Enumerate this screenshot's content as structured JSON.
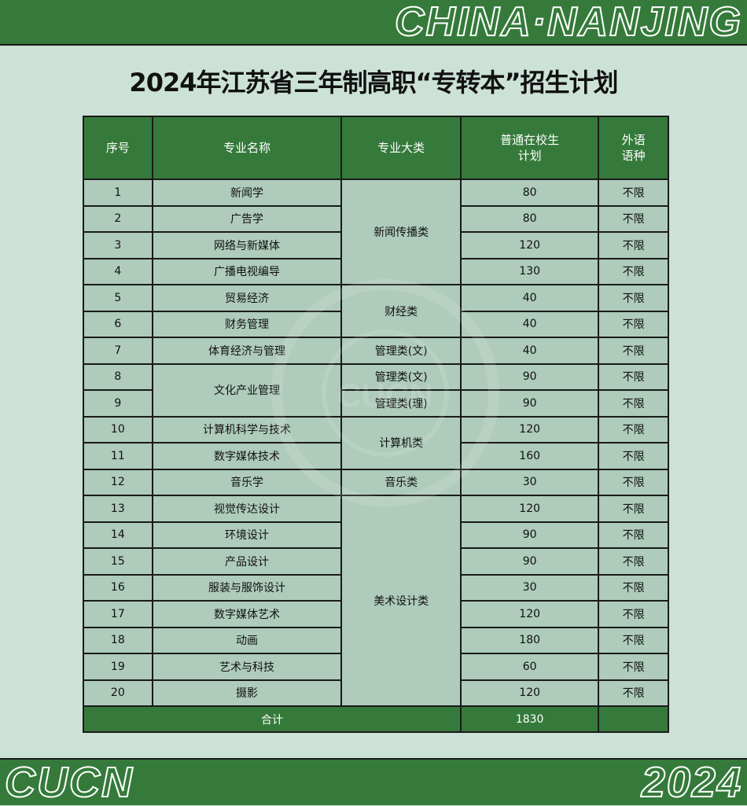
{
  "banner_top": {
    "text": "CHINA·NANJING"
  },
  "banner_bottom": {
    "left": "CUCN",
    "right": "2024"
  },
  "title": "2024年江苏省三年制高职“专转本”招生计划",
  "colors": {
    "green": "#357a3a",
    "cell": "#aecbbb",
    "background": "#cde2d7"
  },
  "watermark": {
    "text": "CUCN",
    "ring_text": "COMMUNICATION UNIVERSITY OF CHINA NANJING"
  },
  "table": {
    "headers": [
      "序号",
      "专业名称",
      "专业大类",
      "普通在校生\n计划",
      "外语\n语种"
    ],
    "rows": [
      {
        "no": "1",
        "name": "新闻学",
        "plan": "80",
        "lang": "不限"
      },
      {
        "no": "2",
        "name": "广告学",
        "plan": "80",
        "lang": "不限"
      },
      {
        "no": "3",
        "name": "网络与新媒体",
        "plan": "120",
        "lang": "不限"
      },
      {
        "no": "4",
        "name": "广播电视编导",
        "plan": "130",
        "lang": "不限"
      },
      {
        "no": "5",
        "name": "贸易经济",
        "plan": "40",
        "lang": "不限"
      },
      {
        "no": "6",
        "name": "财务管理",
        "plan": "40",
        "lang": "不限"
      },
      {
        "no": "7",
        "name": "体育经济与管理",
        "plan": "40",
        "lang": "不限"
      },
      {
        "no": "8",
        "name": "文化产业管理",
        "name_span": 2,
        "plan": "90",
        "lang": "不限"
      },
      {
        "no": "9",
        "plan": "90",
        "lang": "不限"
      },
      {
        "no": "10",
        "name": "计算机科学与技术",
        "plan": "120",
        "lang": "不限"
      },
      {
        "no": "11",
        "name": "数字媒体技术",
        "plan": "160",
        "lang": "不限"
      },
      {
        "no": "12",
        "name": "音乐学",
        "plan": "30",
        "lang": "不限"
      },
      {
        "no": "13",
        "name": "视觉传达设计",
        "plan": "120",
        "lang": "不限"
      },
      {
        "no": "14",
        "name": "环境设计",
        "plan": "90",
        "lang": "不限"
      },
      {
        "no": "15",
        "name": "产品设计",
        "plan": "90",
        "lang": "不限"
      },
      {
        "no": "16",
        "name": "服装与服饰设计",
        "plan": "30",
        "lang": "不限"
      },
      {
        "no": "17",
        "name": "数字媒体艺术",
        "plan": "120",
        "lang": "不限"
      },
      {
        "no": "18",
        "name": "动画",
        "plan": "180",
        "lang": "不限"
      },
      {
        "no": "19",
        "name": "艺术与科技",
        "plan": "60",
        "lang": "不限"
      },
      {
        "no": "20",
        "name": "摄影",
        "plan": "120",
        "lang": "不限"
      }
    ],
    "categories": [
      {
        "label": "新闻传播类",
        "span": 4
      },
      {
        "label": "财经类",
        "span": 2
      },
      {
        "label": "管理类(文)",
        "span": 1
      },
      {
        "label": "管理类(文)",
        "span": 1
      },
      {
        "label": "管理类(理)",
        "span": 1
      },
      {
        "label": "计算机类",
        "span": 2
      },
      {
        "label": "音乐类",
        "span": 1
      },
      {
        "label": "美术设计类",
        "span": 8
      }
    ],
    "total": {
      "label": "合计",
      "plan": "1830",
      "lang": ""
    }
  }
}
